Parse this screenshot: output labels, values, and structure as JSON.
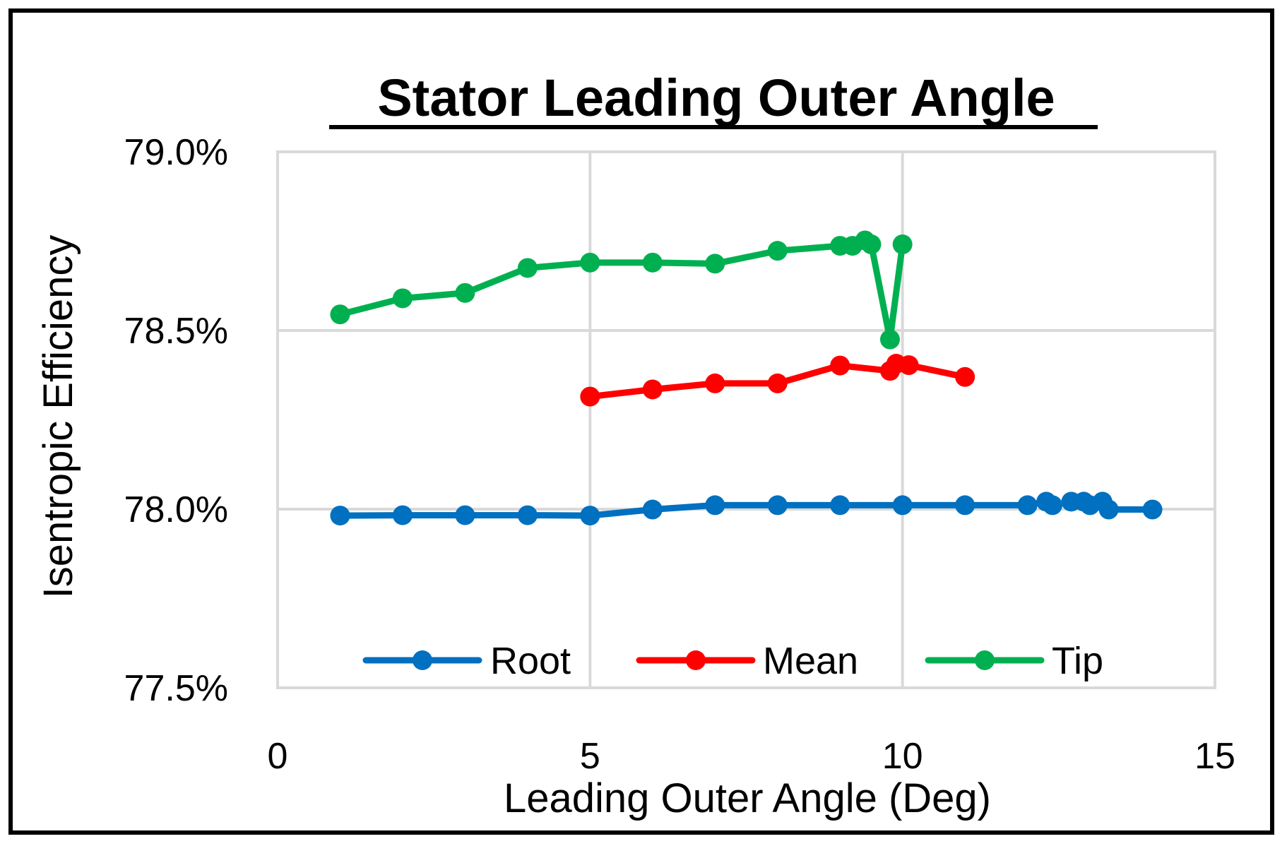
{
  "chart_data": {
    "type": "line",
    "title": "Stator Leading Outer Angle",
    "xlabel": "Leading Outer Angle (Deg)",
    "ylabel": "Isentropic Efficiency",
    "xlim": [
      0,
      15
    ],
    "ylim": [
      0.775,
      0.79
    ],
    "xticks": [
      0,
      5,
      10,
      15
    ],
    "xtick_labels": [
      "0",
      "5",
      "10",
      "15"
    ],
    "yticks": [
      0.775,
      0.78,
      0.785,
      0.79
    ],
    "ytick_labels": [
      "77.5%",
      "78.0%",
      "78.5%",
      "79.0%"
    ],
    "grid": true,
    "legend_position": "bottom-inside",
    "series": [
      {
        "name": "Root",
        "color": "#0070C0",
        "points": [
          [
            1,
            0.77982
          ],
          [
            2,
            0.77983
          ],
          [
            3,
            0.77983
          ],
          [
            4,
            0.77983
          ],
          [
            5,
            0.77982
          ],
          [
            6,
            0.77999
          ],
          [
            7,
            0.78011
          ],
          [
            8,
            0.78011
          ],
          [
            9,
            0.78011
          ],
          [
            10,
            0.78011
          ],
          [
            11,
            0.78011
          ],
          [
            12,
            0.78011
          ],
          [
            12.3,
            0.78021
          ],
          [
            12.4,
            0.78011
          ],
          [
            12.7,
            0.78021
          ],
          [
            12.9,
            0.78021
          ],
          [
            13.0,
            0.78011
          ],
          [
            13.2,
            0.78021
          ],
          [
            13.3,
            0.77999
          ],
          [
            14.0,
            0.77999
          ]
        ]
      },
      {
        "name": "Mean",
        "color": "#FF0000",
        "points": [
          [
            5,
            0.78315
          ],
          [
            6,
            0.78335
          ],
          [
            7,
            0.78352
          ],
          [
            8,
            0.78352
          ],
          [
            9,
            0.78402
          ],
          [
            9.8,
            0.78387
          ],
          [
            9.9,
            0.78407
          ],
          [
            10.1,
            0.78403
          ],
          [
            11,
            0.7837
          ]
        ]
      },
      {
        "name": "Tip",
        "color": "#00B050",
        "points": [
          [
            1,
            0.78545
          ],
          [
            2,
            0.7859
          ],
          [
            3,
            0.78605
          ],
          [
            4,
            0.78675
          ],
          [
            5,
            0.7869
          ],
          [
            6,
            0.7869
          ],
          [
            7,
            0.78687
          ],
          [
            8,
            0.78723
          ],
          [
            9,
            0.78737
          ],
          [
            9.2,
            0.78737
          ],
          [
            9.4,
            0.78752
          ],
          [
            9.5,
            0.78741
          ],
          [
            9.8,
            0.78475
          ],
          [
            10.0,
            0.78741
          ]
        ]
      }
    ]
  }
}
